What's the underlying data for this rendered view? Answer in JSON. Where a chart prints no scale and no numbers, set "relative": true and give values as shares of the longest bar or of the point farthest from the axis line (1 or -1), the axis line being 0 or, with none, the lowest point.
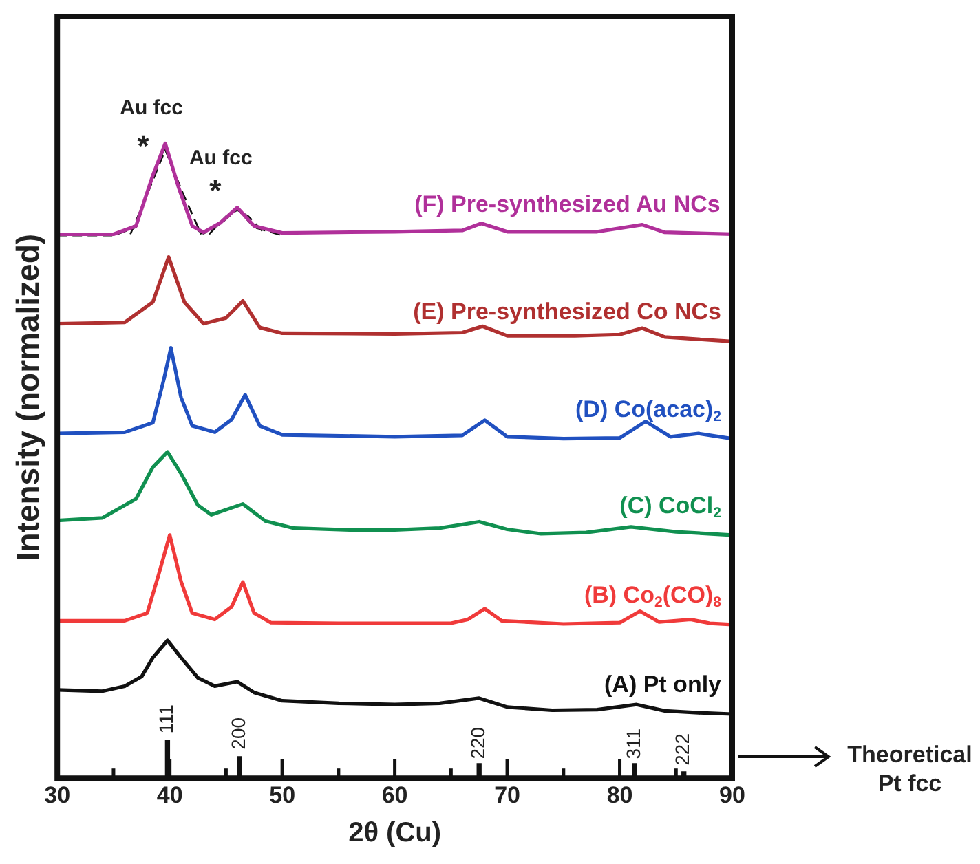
{
  "chart_data": {
    "type": "line",
    "xlabel": "2θ (Cu)",
    "ylabel": "Intensity (normalized)",
    "relative": true,
    "xlim": [
      30,
      90
    ],
    "xticks": [
      30,
      {
        "value": 35,
        "label": null
      },
      40,
      {
        "value": 45,
        "label": null
      },
      50,
      {
        "value": 55,
        "label": null
      },
      60,
      {
        "value": 65,
        "label": null
      },
      70,
      {
        "value": 75,
        "label": null
      },
      80,
      {
        "value": 85,
        "label": null
      },
      90
    ],
    "marker": "none",
    "line_style": "solid",
    "grid": false,
    "legend": "right",
    "series": [
      {
        "name": "(A) Pt only",
        "color": "#111111",
        "x": [
          30,
          34,
          36,
          37.5,
          38.5,
          39.8,
          41,
          42.5,
          44,
          46,
          47.5,
          50,
          55,
          60,
          64,
          67.5,
          70,
          74,
          78,
          81.5,
          84,
          87,
          90
        ],
        "values": [
          0.139,
          0.137,
          0.145,
          0.16,
          0.19,
          0.217,
          0.19,
          0.158,
          0.145,
          0.152,
          0.135,
          0.122,
          0.118,
          0.116,
          0.118,
          0.126,
          0.112,
          0.107,
          0.108,
          0.116,
          0.106,
          0.103,
          0.101
        ]
      },
      {
        "name": "(B) Co$_{2}$(CO)$_{8}$",
        "color": "#f03a3a",
        "x": [
          30,
          36,
          38,
          39,
          40,
          41,
          42,
          44,
          45.5,
          46.5,
          47.5,
          49,
          55,
          60,
          65,
          66.5,
          68,
          69.5,
          75,
          80,
          81.8,
          83.5,
          86.3,
          88,
          90
        ],
        "values": [
          0.248,
          0.248,
          0.26,
          0.32,
          0.383,
          0.31,
          0.26,
          0.25,
          0.27,
          0.309,
          0.26,
          0.245,
          0.244,
          0.244,
          0.244,
          0.25,
          0.267,
          0.248,
          0.243,
          0.245,
          0.263,
          0.246,
          0.25,
          0.244,
          0.242
        ]
      },
      {
        "name": "(C) CoCl$_{2}$",
        "color": "#109050",
        "x": [
          30,
          34,
          37,
          38.5,
          39.8,
          41,
          42.5,
          43.7,
          46.5,
          48.5,
          51,
          56,
          60,
          64,
          67.5,
          70,
          73,
          77,
          81,
          85,
          90
        ],
        "values": [
          0.406,
          0.41,
          0.44,
          0.49,
          0.514,
          0.48,
          0.43,
          0.415,
          0.432,
          0.405,
          0.394,
          0.391,
          0.391,
          0.394,
          0.404,
          0.392,
          0.385,
          0.387,
          0.396,
          0.388,
          0.383
        ]
      },
      {
        "name": "(D) Co(acac)$_{2}$",
        "color": "#2050c0",
        "x": [
          30,
          36,
          38.5,
          39.5,
          40.1,
          41,
          42,
          44,
          45.5,
          46.7,
          48,
          50,
          60,
          66,
          68,
          70,
          75,
          80,
          82.3,
          84.5,
          87,
          90
        ],
        "values": [
          0.543,
          0.545,
          0.56,
          0.63,
          0.678,
          0.6,
          0.555,
          0.545,
          0.565,
          0.604,
          0.555,
          0.541,
          0.538,
          0.54,
          0.564,
          0.538,
          0.535,
          0.536,
          0.562,
          0.538,
          0.543,
          0.535
        ]
      },
      {
        "name": "(E) Pre-synthesized Co NCs",
        "color": "#b03030",
        "x": [
          30,
          36,
          38.5,
          39.9,
          41.3,
          43,
          45,
          46.5,
          48,
          50,
          60,
          66,
          67.8,
          70,
          76,
          80,
          82,
          84,
          90
        ],
        "values": [
          0.716,
          0.718,
          0.75,
          0.821,
          0.75,
          0.716,
          0.725,
          0.752,
          0.71,
          0.701,
          0.7,
          0.702,
          0.712,
          0.697,
          0.697,
          0.699,
          0.709,
          0.695,
          0.688
        ]
      },
      {
        "name": "(F) Pre-synthesized Au NCs",
        "color": "#b0309a",
        "x": [
          30,
          35,
          37,
          38.5,
          39.6,
          40.8,
          42,
          43,
          44.5,
          46,
          47.5,
          50,
          60,
          66,
          67.7,
          70,
          78,
          82,
          84,
          90
        ],
        "values": [
          0.857,
          0.857,
          0.87,
          0.95,
          1,
          0.93,
          0.87,
          0.86,
          0.875,
          0.899,
          0.87,
          0.859,
          0.861,
          0.863,
          0.874,
          0.861,
          0.861,
          0.872,
          0.86,
          0.857
        ]
      },
      {
        "type": "line",
        "line_style": "dashed",
        "color": "#111111",
        "x": [
          30,
          35,
          37,
          38.5,
          39.6,
          40.8,
          42,
          43,
          44.5,
          46,
          47.5,
          50
        ],
        "values": [
          0.855,
          0.855,
          0.868,
          0.948,
          0.995,
          0.928,
          0.868,
          0.858,
          0.873,
          0.897,
          0.868,
          0.855
        ]
      },
      {
        "type": "line",
        "line_style": "dashed",
        "color": "#111111",
        "x": [
          36.5,
          38,
          39.6,
          41.2,
          42.8
        ],
        "values": [
          0.857,
          0.92,
          0.99,
          0.92,
          0.857
        ]
      },
      {
        "type": "line",
        "line_style": "dashed",
        "color": "#111111",
        "x": [
          43.5,
          45,
          46,
          47,
          48.5
        ],
        "values": [
          0.857,
          0.885,
          0.895,
          0.885,
          0.857
        ]
      },
      {
        "type": "bar",
        "name": "Theoretical Pt fcc",
        "color": "#111111",
        "x": [
          39.8,
          46.2,
          67.5,
          81.3,
          85.7
        ],
        "values": [
          0.059,
          0.034,
          0.023,
          0.023,
          0.01
        ]
      }
    ],
    "annotations": [
      {
        "text": "Au fcc",
        "x": 39.6,
        "y": 1
      },
      {
        "text": "*",
        "x": 39.6,
        "y": 1
      },
      {
        "text": "Au fcc",
        "x": 46,
        "y": 0.899
      },
      {
        "text": "*",
        "x": 46,
        "y": 0.899
      },
      {
        "text": "111",
        "x": 39.8,
        "y": 0.07
      },
      {
        "text": "200",
        "x": 46.2,
        "y": 0.045
      },
      {
        "text": "220",
        "x": 67.5,
        "y": 0.03
      },
      {
        "text": "311",
        "x": 81.3,
        "y": 0.03
      },
      {
        "text": "222",
        "x": 85.7,
        "y": 0.02
      }
    ]
  }
}
